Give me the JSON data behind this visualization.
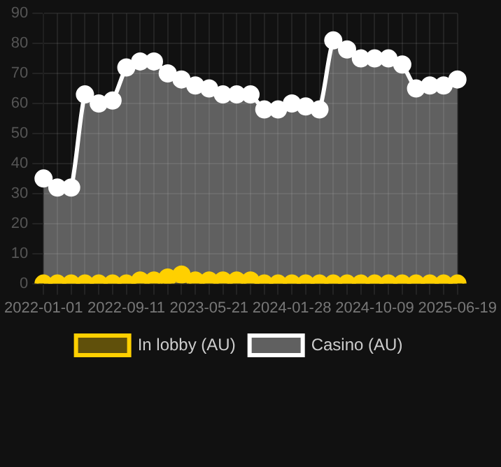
{
  "chart_data": {
    "type": "area",
    "categories": [
      "2022-01-01",
      null,
      null,
      null,
      null,
      null,
      "2022-09-11",
      null,
      null,
      null,
      null,
      null,
      "2023-05-21",
      null,
      null,
      null,
      null,
      null,
      "2024-01-28",
      null,
      null,
      null,
      null,
      null,
      "2024-10-09",
      null,
      null,
      null,
      null,
      null,
      "2025-06-19"
    ],
    "series": [
      {
        "name": "In lobby (AU)",
        "color": "#ffd000",
        "values": [
          0,
          0,
          0,
          0,
          0,
          0,
          0,
          1,
          1,
          2,
          3,
          1,
          1,
          1,
          1,
          1,
          0,
          0,
          0,
          0,
          0,
          0,
          0,
          0,
          0,
          0,
          0,
          0,
          0,
          0,
          0
        ]
      },
      {
        "name": "Casino (AU)",
        "color": "#ffffff",
        "values": [
          35,
          32,
          32,
          63,
          60,
          61,
          72,
          74,
          74,
          70,
          68,
          66,
          65,
          63,
          63,
          63,
          58,
          58,
          60,
          59,
          58,
          81,
          78,
          75,
          75,
          75,
          73,
          65,
          66,
          66,
          68
        ]
      }
    ],
    "ylim": [
      0,
      90
    ],
    "yticks": [
      0,
      10,
      20,
      30,
      40,
      50,
      60,
      70,
      80,
      90
    ],
    "grid": true,
    "legend": "bottom",
    "marker": "circle"
  }
}
